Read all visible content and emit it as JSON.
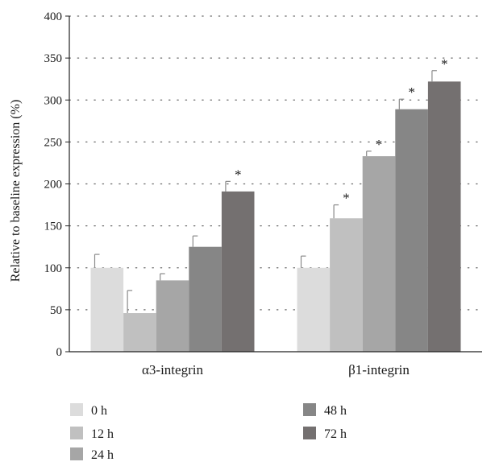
{
  "chart_data": {
    "type": "bar",
    "categories": [
      "α3-integrin",
      "β1-integrin"
    ],
    "series": [
      {
        "name": "0 h",
        "color": "#dcdcdc",
        "values": [
          100,
          100
        ],
        "errors": [
          16,
          14
        ],
        "significant": [
          false,
          false
        ]
      },
      {
        "name": "12 h",
        "color": "#c0c0c0",
        "values": [
          46,
          159
        ],
        "errors": [
          27,
          16
        ],
        "significant": [
          false,
          true
        ]
      },
      {
        "name": "24 h",
        "color": "#a6a6a6",
        "values": [
          85,
          233
        ],
        "errors": [
          8,
          6
        ],
        "significant": [
          false,
          true
        ]
      },
      {
        "name": "48 h",
        "color": "#868686",
        "values": [
          125,
          289
        ],
        "errors": [
          13,
          12
        ],
        "significant": [
          false,
          true
        ]
      },
      {
        "name": "72 h",
        "color": "#747070",
        "values": [
          191,
          322
        ],
        "errors": [
          12,
          13
        ],
        "significant": [
          true,
          true
        ]
      }
    ],
    "significance_marker": "*",
    "ylabel": "Relative to baseline expression (%)",
    "xlabel": "",
    "title": "",
    "ylim": [
      0,
      400
    ],
    "yticks": [
      0,
      50,
      100,
      150,
      200,
      250,
      300,
      350,
      400
    ],
    "grid": "horizontal dotted",
    "legend_position": "bottom"
  }
}
